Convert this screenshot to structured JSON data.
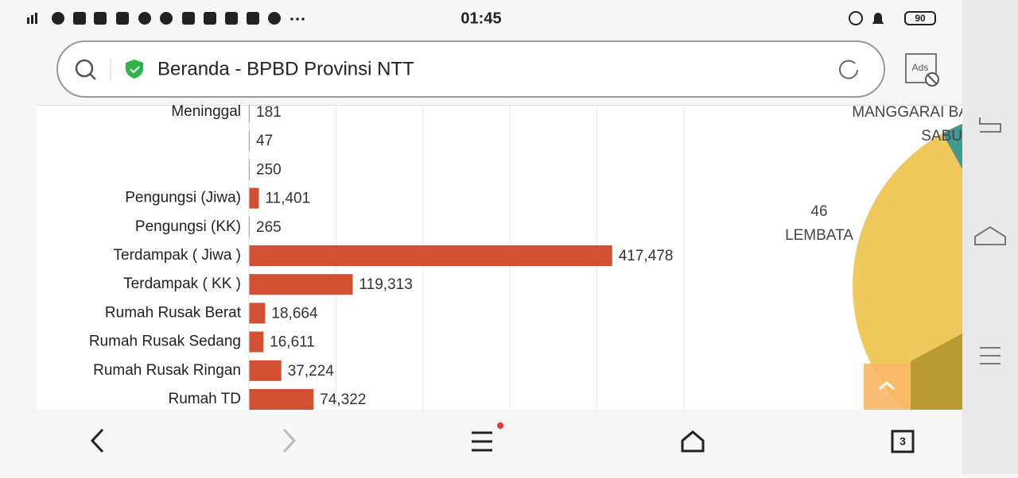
{
  "status_bar": {
    "time": "01:45",
    "battery": "90"
  },
  "address_bar": {
    "title": "Beranda - BPBD Provinsi NTT",
    "ads_icon": "Ads"
  },
  "chart_data": {
    "type": "bar",
    "orientation": "horizontal",
    "categories": [
      "Meninggal",
      null,
      null,
      "Pengungsi (Jiwa)",
      "Pengungsi (KK)",
      "Terdampak ( Jiwa )",
      "Terdampak ( KK )",
      "Rumah Rusak Berat",
      "Rumah Rusak Sedang",
      "Rumah Rusak Ringan",
      "Rumah TD"
    ],
    "values": [
      181,
      47,
      250,
      11401,
      265,
      417478,
      119313,
      18664,
      16611,
      37224,
      74322
    ],
    "value_labels": [
      "181",
      "47",
      "250",
      "11,401",
      "265",
      "417,478",
      "119,313",
      "18,664",
      "16,611",
      "37,224",
      "74,322"
    ],
    "color": "#d24f31",
    "xlim": [
      0,
      500000
    ],
    "xgrid": [
      100000,
      200000,
      300000,
      400000,
      500000
    ]
  },
  "pie_labels": [
    "MANGGARAI BA",
    "SABU",
    "46",
    "LEMBATA"
  ],
  "bottom_bar": {
    "tab_count": "3"
  }
}
